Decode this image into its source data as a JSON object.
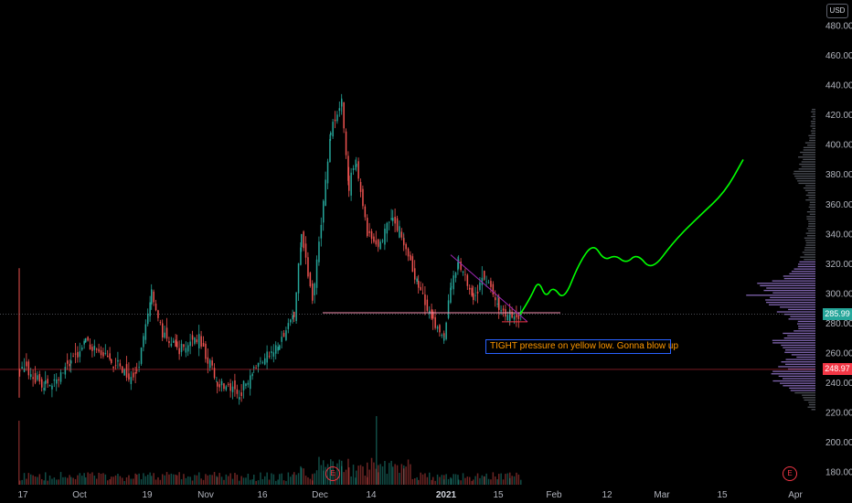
{
  "currency": "USD",
  "current_price_label": "285.99",
  "level_price_label": "248.97",
  "annotation_text": "TIGHT pressure on yellow low. Gonna blow up",
  "event_marker_label": "E",
  "colors": {
    "up": "#26a69a",
    "down": "#ef5350",
    "volume_profile": "#9575cd",
    "projection": "#00ff00",
    "support_line": "#f48fb1",
    "descending_line": "#9c27b0",
    "level_line": "#f23645",
    "annotation_text": "#ff9800",
    "annotation_border": "#2962ff"
  },
  "chart_data": {
    "type": "candlestick",
    "y_axis": {
      "ticks": [
        "480.00",
        "460.00",
        "440.00",
        "420.00",
        "400.00",
        "380.00",
        "360.00",
        "340.00",
        "320.00",
        "300.00",
        "280.00",
        "260.00",
        "240.00",
        "220.00",
        "200.00",
        "180.00"
      ],
      "range": [
        175,
        490
      ],
      "position": "right"
    },
    "x_axis": {
      "ticks": [
        "17",
        "Oct",
        "19",
        "Nov",
        "16",
        "Dec",
        "14",
        "2021",
        "15",
        "Feb",
        "12",
        "Mar",
        "15",
        "Apr"
      ],
      "bold_ticks": [
        "2021"
      ]
    },
    "price_path": [
      {
        "date": "Sep 17",
        "price": 250
      },
      {
        "date": "Sep 24",
        "price": 238
      },
      {
        "date": "Oct 1",
        "price": 252
      },
      {
        "date": "Oct 5",
        "price": 268
      },
      {
        "date": "Oct 12",
        "price": 253
      },
      {
        "date": "Oct 19",
        "price": 244
      },
      {
        "date": "Oct 23",
        "price": 302
      },
      {
        "date": "Oct 26",
        "price": 272
      },
      {
        "date": "Oct 30",
        "price": 262
      },
      {
        "date": "Nov 5",
        "price": 270
      },
      {
        "date": "Nov 10",
        "price": 240
      },
      {
        "date": "Nov 16",
        "price": 232
      },
      {
        "date": "Nov 20",
        "price": 250
      },
      {
        "date": "Nov 27",
        "price": 265
      },
      {
        "date": "Dec 1",
        "price": 287
      },
      {
        "date": "Dec 3",
        "price": 338
      },
      {
        "date": "Dec 6",
        "price": 298
      },
      {
        "date": "Dec 9",
        "price": 360
      },
      {
        "date": "Dec 11",
        "price": 410
      },
      {
        "date": "Dec 14",
        "price": 428
      },
      {
        "date": "Dec 16",
        "price": 372
      },
      {
        "date": "Dec 18",
        "price": 388
      },
      {
        "date": "Dec 21",
        "price": 340
      },
      {
        "date": "Dec 24",
        "price": 330
      },
      {
        "date": "Dec 28",
        "price": 352
      },
      {
        "date": "Dec 31",
        "price": 335
      },
      {
        "date": "Jan 4",
        "price": 305
      },
      {
        "date": "Jan 8",
        "price": 280
      },
      {
        "date": "Jan 11",
        "price": 272
      },
      {
        "date": "Jan 13",
        "price": 308
      },
      {
        "date": "Jan 15",
        "price": 320
      },
      {
        "date": "Jan 19",
        "price": 298
      },
      {
        "date": "Jan 22",
        "price": 312
      },
      {
        "date": "Jan 26",
        "price": 290
      },
      {
        "date": "Jan 29",
        "price": 284
      },
      {
        "date": "Feb 1",
        "price": 286
      }
    ],
    "projection_path": [
      {
        "date": "Feb 1",
        "price": 286
      },
      {
        "date": "Feb 4",
        "price": 298
      },
      {
        "date": "Feb 6",
        "price": 309
      },
      {
        "date": "Feb 8",
        "price": 297
      },
      {
        "date": "Feb 10",
        "price": 305
      },
      {
        "date": "Feb 13",
        "price": 295
      },
      {
        "date": "Feb 17",
        "price": 320
      },
      {
        "date": "Feb 21",
        "price": 334
      },
      {
        "date": "Feb 24",
        "price": 322
      },
      {
        "date": "Feb 27",
        "price": 326
      },
      {
        "date": "Mar 2",
        "price": 320
      },
      {
        "date": "Mar 5",
        "price": 327
      },
      {
        "date": "Mar 9",
        "price": 315
      },
      {
        "date": "Mar 15",
        "price": 335
      },
      {
        "date": "Mar 22",
        "price": 352
      },
      {
        "date": "Mar 29",
        "price": 368
      },
      {
        "date": "Apr 3",
        "price": 390
      }
    ],
    "drawings": {
      "support_line": {
        "from_date": "Dec 9",
        "to_date": "Feb 12",
        "price": 287
      },
      "descending_line": {
        "from_date": "Jan 13",
        "from_price": 326,
        "to_date": "Feb 3",
        "to_price": 281
      },
      "base_line": {
        "from_date": "Jan 27",
        "to_date": "Feb 3",
        "price": 281
      },
      "current_price_line": 285.99,
      "level_line": 248.97
    },
    "grid": false
  }
}
